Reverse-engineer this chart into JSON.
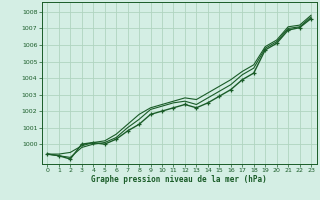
{
  "bg_color": "#d4eee4",
  "grid_color": "#b0d4c0",
  "line_color": "#1a5c28",
  "xlabel": "Graphe pression niveau de la mer (hPa)",
  "ylim": [
    998.8,
    1008.6
  ],
  "xlim": [
    -0.5,
    23.5
  ],
  "yticks": [
    1000,
    1001,
    1002,
    1003,
    1004,
    1005,
    1006,
    1007,
    1008
  ],
  "xticks": [
    0,
    1,
    2,
    3,
    4,
    5,
    6,
    7,
    8,
    9,
    10,
    11,
    12,
    13,
    14,
    15,
    16,
    17,
    18,
    19,
    20,
    21,
    22,
    23
  ],
  "series_main": {
    "x": [
      0,
      1,
      2,
      3,
      4,
      5,
      6,
      7,
      8,
      9,
      10,
      11,
      12,
      13,
      14,
      15,
      16,
      17,
      18,
      19,
      20,
      21,
      22,
      23
    ],
    "y": [
      999.4,
      999.3,
      999.1,
      1000.0,
      1000.1,
      1000.0,
      1000.3,
      1000.8,
      1001.2,
      1001.8,
      1002.0,
      1002.2,
      1002.4,
      1002.2,
      1002.5,
      1002.9,
      1003.3,
      1003.9,
      1004.3,
      1005.7,
      1006.1,
      1006.9,
      1007.05,
      1007.6
    ]
  },
  "series_line1": {
    "x": [
      0,
      1,
      2,
      3,
      4,
      5,
      6,
      7,
      8,
      9,
      10,
      11,
      12,
      13,
      14,
      15,
      16,
      17,
      18,
      19,
      20,
      21,
      22,
      23
    ],
    "y": [
      999.4,
      999.4,
      999.5,
      999.9,
      1000.1,
      1000.2,
      1000.6,
      1001.2,
      1001.8,
      1002.2,
      1002.4,
      1002.6,
      1002.8,
      1002.7,
      1003.1,
      1003.5,
      1003.9,
      1004.4,
      1004.8,
      1005.9,
      1006.3,
      1007.1,
      1007.2,
      1007.8
    ]
  },
  "series_line2": {
    "x": [
      0,
      1,
      2,
      3,
      4,
      5,
      6,
      7,
      8,
      9,
      10,
      11,
      12,
      13,
      14,
      15,
      16,
      17,
      18,
      19,
      20,
      21,
      22,
      23
    ],
    "y": [
      999.4,
      999.3,
      999.2,
      999.8,
      1000.0,
      1000.1,
      1000.4,
      1001.0,
      1001.5,
      1002.1,
      1002.3,
      1002.5,
      1002.6,
      1002.4,
      1002.8,
      1003.2,
      1003.6,
      1004.2,
      1004.6,
      1005.8,
      1006.2,
      1007.0,
      1007.1,
      1007.7
    ]
  }
}
